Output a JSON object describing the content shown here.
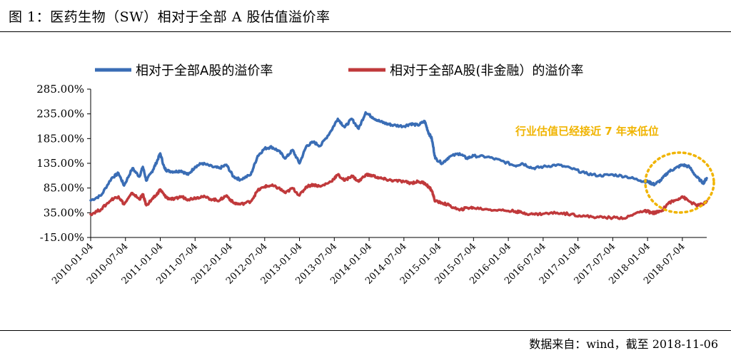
{
  "title": "图 1：医药生物（SW）相对于全部 A 股估值溢价率",
  "source": "数据来自：wind，截至 2018-11-06",
  "chart_data": {
    "type": "line",
    "legend": [
      "相对于全部A股的溢价率",
      "相对于全部A股(非金融）的溢价率"
    ],
    "series_colors": [
      "#3a6db5",
      "#c0393b"
    ],
    "annotation_color": "#f0b400",
    "ylim": [
      -15,
      285
    ],
    "y_ticks": [
      285,
      235,
      185,
      135,
      85,
      35,
      -15
    ],
    "y_tick_labels": [
      "285.00%",
      "235.00%",
      "185.00%",
      "135.00%",
      "85.00%",
      "35.00%",
      "-15.00%"
    ],
    "x_range": [
      2010.0,
      2018.85
    ],
    "x_ticks": [
      2010.0,
      2010.5,
      2011.0,
      2011.5,
      2012.0,
      2012.5,
      2013.0,
      2013.5,
      2014.0,
      2014.5,
      2015.0,
      2015.5,
      2016.0,
      2016.5,
      2017.0,
      2017.5,
      2018.0,
      2018.5
    ],
    "x_tick_labels": [
      "2010-01-04",
      "2010-07-04",
      "2011-01-04",
      "2011-07-04",
      "2012-01-04",
      "2012-07-04",
      "2013-01-04",
      "2013-07-04",
      "2014-01-04",
      "2014-07-04",
      "2015-01-04",
      "2015-07-04",
      "2016-01-04",
      "2016-07-04",
      "2017-01-04",
      "2017-07-04",
      "2018-01-04",
      "2018-07-04"
    ],
    "annotation": "行业估值已经接近 7 年来低位",
    "series": [
      {
        "name": "相对于全部A股的溢价率",
        "x": [
          2010.0,
          2010.15,
          2010.3,
          2010.4,
          2010.48,
          2010.6,
          2010.7,
          2010.75,
          2010.8,
          2010.88,
          2010.94,
          2011.0,
          2011.06,
          2011.1,
          2011.2,
          2011.3,
          2011.4,
          2011.5,
          2011.6,
          2011.75,
          2011.85,
          2011.95,
          2012.05,
          2012.15,
          2012.3,
          2012.4,
          2012.5,
          2012.6,
          2012.7,
          2012.8,
          2012.9,
          2013.0,
          2013.1,
          2013.2,
          2013.3,
          2013.45,
          2013.55,
          2013.65,
          2013.75,
          2013.85,
          2013.95,
          2014.05,
          2014.15,
          2014.25,
          2014.35,
          2014.5,
          2014.6,
          2014.7,
          2014.8,
          2014.85,
          2014.9,
          2014.95,
          2015.05,
          2015.15,
          2015.3,
          2015.4,
          2015.5,
          2015.7,
          2015.9,
          2016.1,
          2016.2,
          2016.35,
          2016.5,
          2016.7,
          2016.9,
          2017.1,
          2017.3,
          2017.5,
          2017.7,
          2017.9,
          2018.0,
          2018.05,
          2018.1,
          2018.2,
          2018.3,
          2018.4,
          2018.5,
          2018.6,
          2018.7,
          2018.8,
          2018.85
        ],
        "values": [
          60,
          70,
          105,
          115,
          90,
          125,
          108,
          128,
          100,
          118,
          135,
          155,
          125,
          120,
          118,
          120,
          112,
          128,
          135,
          128,
          125,
          132,
          108,
          102,
          112,
          150,
          165,
          168,
          160,
          145,
          162,
          135,
          170,
          178,
          170,
          200,
          225,
          208,
          225,
          205,
          238,
          228,
          220,
          215,
          212,
          210,
          215,
          212,
          220,
          198,
          185,
          145,
          135,
          148,
          155,
          145,
          150,
          148,
          140,
          130,
          135,
          125,
          128,
          132,
          125,
          115,
          110,
          112,
          108,
          100,
          98,
          95,
          92,
          102,
          118,
          125,
          132,
          128,
          108,
          95,
          105
        ]
      },
      {
        "name": "相对于全部A股(非金融）的溢价率",
        "x": [
          2010.0,
          2010.15,
          2010.3,
          2010.4,
          2010.48,
          2010.6,
          2010.7,
          2010.75,
          2010.8,
          2010.88,
          2010.94,
          2011.0,
          2011.06,
          2011.1,
          2011.2,
          2011.3,
          2011.4,
          2011.5,
          2011.6,
          2011.75,
          2011.85,
          2011.95,
          2012.05,
          2012.15,
          2012.3,
          2012.4,
          2012.5,
          2012.6,
          2012.7,
          2012.8,
          2012.9,
          2013.0,
          2013.1,
          2013.2,
          2013.3,
          2013.45,
          2013.55,
          2013.65,
          2013.75,
          2013.85,
          2013.95,
          2014.05,
          2014.15,
          2014.25,
          2014.35,
          2014.5,
          2014.6,
          2014.7,
          2014.8,
          2014.85,
          2014.9,
          2014.95,
          2015.05,
          2015.15,
          2015.3,
          2015.4,
          2015.5,
          2015.7,
          2015.9,
          2016.1,
          2016.2,
          2016.35,
          2016.5,
          2016.7,
          2016.9,
          2017.1,
          2017.3,
          2017.5,
          2017.7,
          2017.9,
          2018.0,
          2018.05,
          2018.1,
          2018.2,
          2018.3,
          2018.4,
          2018.5,
          2018.6,
          2018.7,
          2018.8,
          2018.85
        ],
        "values": [
          32,
          42,
          62,
          68,
          52,
          75,
          62,
          72,
          50,
          62,
          70,
          82,
          70,
          65,
          62,
          68,
          62,
          65,
          68,
          62,
          60,
          70,
          55,
          52,
          58,
          80,
          88,
          90,
          85,
          75,
          85,
          70,
          88,
          92,
          88,
          98,
          112,
          100,
          110,
          98,
          112,
          110,
          105,
          102,
          100,
          98,
          95,
          98,
          95,
          88,
          80,
          58,
          55,
          50,
          40,
          45,
          45,
          42,
          40,
          38,
          35,
          32,
          33,
          35,
          32,
          28,
          26,
          25,
          25,
          38,
          38,
          35,
          35,
          38,
          55,
          60,
          68,
          58,
          50,
          52,
          58
        ]
      }
    ]
  }
}
